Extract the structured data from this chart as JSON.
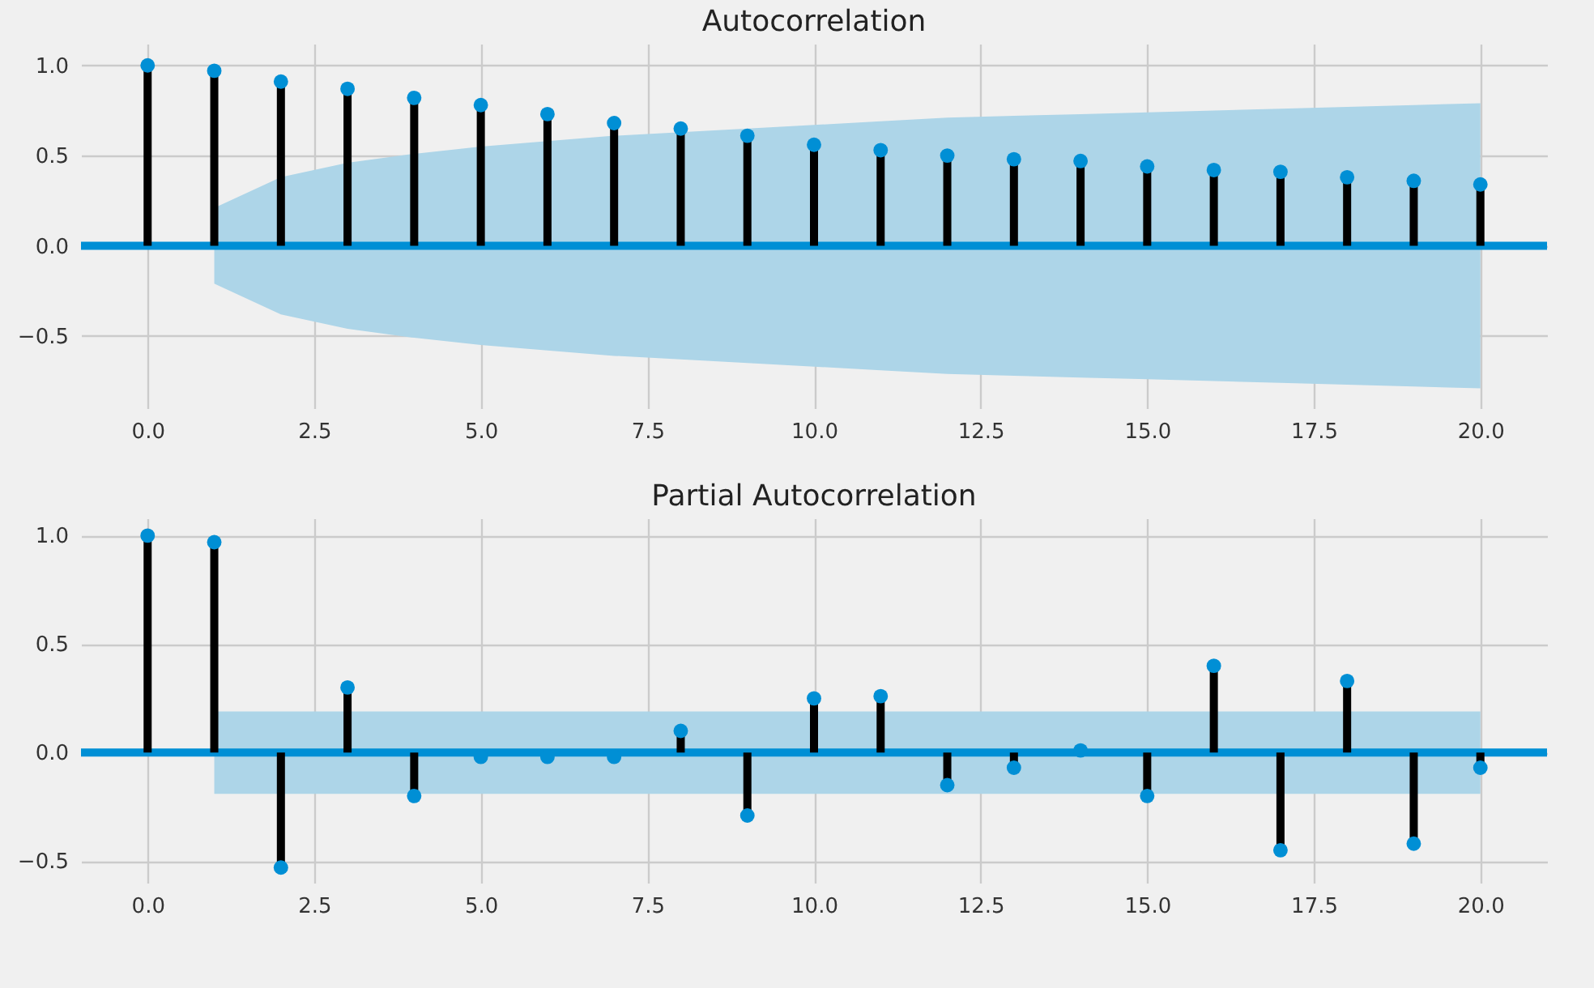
{
  "chart_data": [
    {
      "type": "lollipop",
      "title": "Autocorrelation",
      "x": [
        0,
        1,
        2,
        3,
        4,
        5,
        6,
        7,
        8,
        9,
        10,
        11,
        12,
        13,
        14,
        15,
        16,
        17,
        18,
        19,
        20
      ],
      "series": [
        {
          "color": "#008fd5",
          "values": [
            1.0,
            0.97,
            0.91,
            0.87,
            0.82,
            0.78,
            0.73,
            0.68,
            0.65,
            0.61,
            0.56,
            0.53,
            0.5,
            0.48,
            0.47,
            0.44,
            0.42,
            0.41,
            0.38,
            0.36,
            0.34
          ],
          "lower": [
            null,
            -0.21,
            -0.38,
            -0.46,
            -0.51,
            -0.55,
            -0.58,
            -0.61,
            -0.63,
            -0.65,
            -0.67,
            -0.69,
            -0.71,
            -0.72,
            -0.73,
            -0.74,
            -0.75,
            -0.76,
            -0.77,
            -0.78,
            -0.79
          ],
          "upper": [
            null,
            0.21,
            0.38,
            0.46,
            0.51,
            0.55,
            0.58,
            0.61,
            0.63,
            0.65,
            0.67,
            0.69,
            0.71,
            0.72,
            0.73,
            0.74,
            0.75,
            0.76,
            0.77,
            0.78,
            0.79
          ]
        }
      ],
      "ref_lines": [
        {
          "axis": "y",
          "value": 0,
          "color": "#008fd5"
        }
      ],
      "xlim": [
        -1,
        21
      ],
      "xticks": [
        {
          "value": 0,
          "label": "0.0"
        },
        {
          "value": 2.5,
          "label": "2.5"
        },
        {
          "value": 5,
          "label": "5.0"
        },
        {
          "value": 7.5,
          "label": "7.5"
        },
        {
          "value": 10,
          "label": "10.0"
        },
        {
          "value": 12.5,
          "label": "12.5"
        },
        {
          "value": 15,
          "label": "15.0"
        },
        {
          "value": 17.5,
          "label": "17.5"
        },
        {
          "value": 20,
          "label": "20.0"
        }
      ],
      "ylim": [
        -0.9,
        1.12
      ],
      "yticks": [
        {
          "value": -0.5,
          "label": "−0.5"
        },
        {
          "value": 0,
          "label": "0.0"
        },
        {
          "value": 0.5,
          "label": "0.5"
        },
        {
          "value": 1,
          "label": "1.0"
        }
      ],
      "grid": true,
      "marker": "circle"
    },
    {
      "type": "lollipop",
      "title": "Partial Autocorrelation",
      "x": [
        0,
        1,
        2,
        3,
        4,
        5,
        6,
        7,
        8,
        9,
        10,
        11,
        12,
        13,
        14,
        15,
        16,
        17,
        18,
        19,
        20
      ],
      "series": [
        {
          "color": "#008fd5",
          "values": [
            1.0,
            0.97,
            -0.53,
            0.3,
            -0.2,
            -0.02,
            -0.02,
            -0.02,
            0.1,
            -0.29,
            0.25,
            0.26,
            -0.15,
            -0.07,
            0.01,
            -0.2,
            0.4,
            -0.45,
            0.33,
            -0.42,
            -0.07
          ],
          "lower": [
            null,
            -0.19,
            -0.19,
            -0.19,
            -0.19,
            -0.19,
            -0.19,
            -0.19,
            -0.19,
            -0.19,
            -0.19,
            -0.19,
            -0.19,
            -0.19,
            -0.19,
            -0.19,
            -0.19,
            -0.19,
            -0.19,
            -0.19,
            -0.19
          ],
          "upper": [
            null,
            0.19,
            0.19,
            0.19,
            0.19,
            0.19,
            0.19,
            0.19,
            0.19,
            0.19,
            0.19,
            0.19,
            0.19,
            0.19,
            0.19,
            0.19,
            0.19,
            0.19,
            0.19,
            0.19,
            0.19
          ]
        }
      ],
      "ref_lines": [
        {
          "axis": "y",
          "value": 0,
          "color": "#008fd5"
        }
      ],
      "xlim": [
        -1,
        21
      ],
      "xticks": [
        {
          "value": 0,
          "label": "0.0"
        },
        {
          "value": 2.5,
          "label": "2.5"
        },
        {
          "value": 5,
          "label": "5.0"
        },
        {
          "value": 7.5,
          "label": "7.5"
        },
        {
          "value": 10,
          "label": "10.0"
        },
        {
          "value": 12.5,
          "label": "12.5"
        },
        {
          "value": 15,
          "label": "15.0"
        },
        {
          "value": 17.5,
          "label": "17.5"
        },
        {
          "value": 20,
          "label": "20.0"
        }
      ],
      "ylim": [
        -0.6,
        1.08
      ],
      "yticks": [
        {
          "value": -0.5,
          "label": "−0.5"
        },
        {
          "value": 0,
          "label": "0.0"
        },
        {
          "value": 0.5,
          "label": "0.5"
        },
        {
          "value": 1,
          "label": "1.0"
        }
      ],
      "grid": true,
      "marker": "circle"
    }
  ]
}
